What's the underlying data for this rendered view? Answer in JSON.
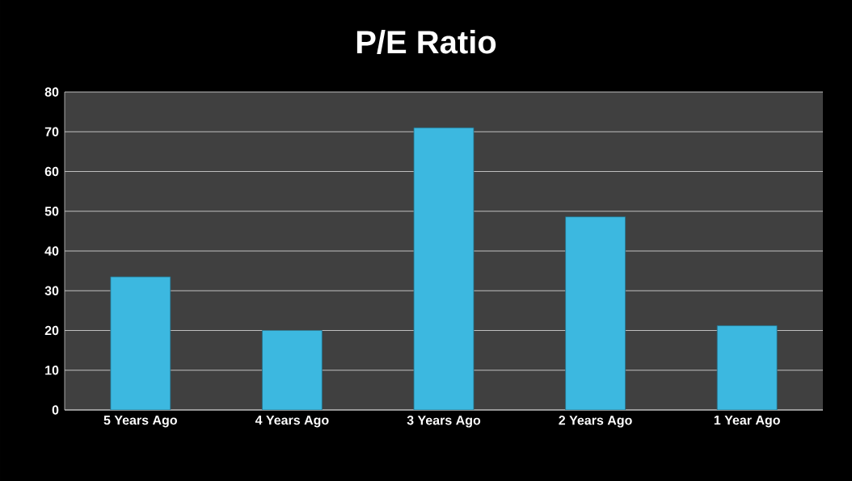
{
  "chart_data": {
    "type": "bar",
    "title": "P/E Ratio",
    "categories": [
      "5 Years Ago",
      "4 Years Ago",
      "3 Years Ago",
      "2 Years Ago",
      "1 Year Ago"
    ],
    "values": [
      33.5,
      20,
      71,
      48.6,
      21.2
    ],
    "color": "#3cb8e0",
    "ylim": [
      0,
      80
    ],
    "yticks": [
      0,
      10,
      20,
      30,
      40,
      50,
      60,
      70,
      80
    ],
    "grid": "y"
  }
}
